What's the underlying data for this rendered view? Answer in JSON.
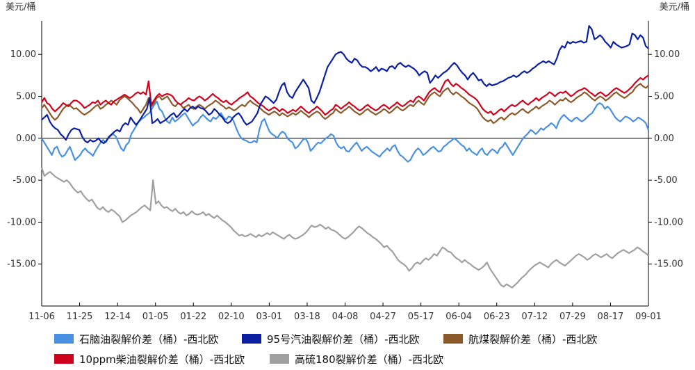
{
  "chart_data": {
    "type": "line",
    "y_unit_left": "美元/桶",
    "y_unit_right": "美元/桶",
    "ylim": [
      -20,
      14
    ],
    "yticks": [
      -15,
      -10,
      -5,
      0,
      5,
      10
    ],
    "ytick_labels": [
      "-15.00",
      "-10.00",
      "-5.00",
      "0.00",
      "5.00",
      "10.00"
    ],
    "x_tick_labels": [
      "11-06",
      "11-25",
      "12-14",
      "01-05",
      "01-22",
      "02-10",
      "03-01",
      "03-18",
      "04-08",
      "04-27",
      "05-17",
      "06-04",
      "06-23",
      "07-12",
      "07-29",
      "08-17",
      "09-01"
    ],
    "colors": {
      "naphtha": "#4a90e2",
      "gasoline95": "#0b1fa0",
      "jet": "#8b5a2b",
      "diesel": "#d0021b",
      "hsfo180": "#a0a0a0"
    },
    "series": [
      {
        "key": "naphtha",
        "name": "石脑油裂解价差（桶）-西北欧",
        "values": [
          0.0,
          -0.5,
          -1.0,
          -1.5,
          -2.0,
          -1.2,
          -1.0,
          -1.8,
          -2.2,
          -2.0,
          -1.5,
          -1.0,
          -1.8,
          -2.6,
          -2.3,
          -2.0,
          -1.5,
          -1.2,
          -1.6,
          -1.8,
          -2.1,
          -1.5,
          -1.0,
          -0.5,
          -0.2,
          -0.5,
          0.0,
          0.3,
          0.5,
          0.2,
          -0.5,
          -1.2,
          -1.5,
          -0.8,
          -0.5,
          0.5,
          1.0,
          1.5,
          2.0,
          2.3,
          2.5,
          2.8,
          3.0,
          3.5,
          4.0,
          4.4,
          3.5,
          3.2,
          2.5,
          2.0,
          1.8,
          2.5,
          2.0,
          2.2,
          2.5,
          2.8,
          3.0,
          2.5,
          2.0,
          1.5,
          1.8,
          2.0,
          2.5,
          2.8,
          2.5,
          2.2,
          2.0,
          2.5,
          2.3,
          2.6,
          3.0,
          2.5,
          2.2,
          2.6,
          2.5,
          2.0,
          1.2,
          0.5,
          0.0,
          -0.2,
          -0.3,
          -0.5,
          -0.5,
          -0.3,
          -0.5,
          1.0,
          2.0,
          2.3,
          1.5,
          0.8,
          0.5,
          0.3,
          0.0,
          0.5,
          0.8,
          0.6,
          0.0,
          -0.3,
          -0.5,
          -1.2,
          -1.0,
          -0.6,
          -0.2,
          0.0,
          -0.5,
          -1.5,
          -1.2,
          -0.8,
          -0.5,
          -0.6,
          -0.3,
          0.0,
          0.2,
          0.5,
          0.3,
          -0.5,
          -1.0,
          -1.2,
          -1.0,
          -1.5,
          -1.6,
          -1.2,
          -0.8,
          -0.5,
          -1.0,
          -1.5,
          -1.2,
          -1.0,
          -1.3,
          -1.6,
          -1.8,
          -2.0,
          -2.2,
          -1.8,
          -1.5,
          -1.2,
          -1.5,
          -1.0,
          -0.8,
          -1.5,
          -2.0,
          -2.2,
          -2.5,
          -2.8,
          -2.6,
          -2.0,
          -1.5,
          -1.2,
          -1.5,
          -2.0,
          -1.8,
          -1.5,
          -1.2,
          -1.0,
          -1.3,
          -1.6,
          -1.5,
          -1.0,
          -0.8,
          -0.5,
          -0.3,
          0.0,
          -0.2,
          -0.5,
          -0.8,
          -1.0,
          -1.5,
          -1.2,
          -1.6,
          -1.8,
          -2.0,
          -1.5,
          -1.2,
          -1.8,
          -2.0,
          -1.6,
          -1.3,
          -1.5,
          -1.8,
          -1.2,
          -1.0,
          -0.5,
          -1.0,
          -1.5,
          -2.0,
          -1.5,
          -1.0,
          -0.5,
          0.0,
          0.3,
          0.6,
          1.0,
          0.8,
          0.5,
          0.8,
          1.2,
          1.0,
          1.3,
          1.5,
          1.8,
          1.6,
          1.2,
          2.0,
          2.5,
          2.8,
          2.5,
          2.2,
          2.0,
          2.3,
          2.5,
          2.2,
          2.0,
          2.2,
          2.5,
          2.8,
          3.0,
          3.5,
          4.0,
          4.2,
          4.0,
          3.5,
          3.8,
          3.5,
          3.0,
          2.5,
          2.2,
          2.0,
          2.3,
          2.6,
          2.5,
          2.3,
          2.0,
          2.2,
          2.5,
          2.3,
          2.1,
          1.8,
          1.0
        ]
      },
      {
        "key": "gasoline95",
        "name": "95号汽油裂解价差（桶）-西北欧",
        "values": [
          2.2,
          2.5,
          2.8,
          2.0,
          1.5,
          1.2,
          1.0,
          0.5,
          0.2,
          -0.2,
          0.5,
          1.0,
          1.2,
          1.1,
          1.0,
          0.2,
          -0.3,
          -0.5,
          -0.2,
          -0.4,
          -0.3,
          0.0,
          -0.4,
          -0.6,
          -0.3,
          0.2,
          0.5,
          0.8,
          1.0,
          0.8,
          1.5,
          1.8,
          1.6,
          2.5,
          2.0,
          1.6,
          2.0,
          2.5,
          3.0,
          3.5,
          4.8,
          1.8,
          2.0,
          2.3,
          1.8,
          2.0,
          2.2,
          2.5,
          2.8,
          3.0,
          2.5,
          2.8,
          3.2,
          3.5,
          3.2,
          3.6,
          3.8,
          3.5,
          3.8,
          3.6,
          3.5,
          3.2,
          2.8,
          3.0,
          3.5,
          3.2,
          2.8,
          2.5,
          2.0,
          1.8,
          2.0,
          2.5,
          2.8,
          3.0,
          2.6,
          2.0,
          1.6,
          1.8,
          2.0,
          2.5,
          3.0,
          4.0,
          4.5,
          5.0,
          4.8,
          4.5,
          4.2,
          4.6,
          5.5,
          6.3,
          6.6,
          5.5,
          5.0,
          4.8,
          5.5,
          6.0,
          6.5,
          7.0,
          6.5,
          6.0,
          4.5,
          4.2,
          4.8,
          5.5,
          6.5,
          7.5,
          8.5,
          9.0,
          9.5,
          10.0,
          10.2,
          10.3,
          10.0,
          9.5,
          9.2,
          9.0,
          9.5,
          9.3,
          8.8,
          8.5,
          8.5,
          8.3,
          8.0,
          8.2,
          8.5,
          8.0,
          8.3,
          8.2,
          8.0,
          8.5,
          8.6,
          8.3,
          8.8,
          9.0,
          8.7,
          8.5,
          8.7,
          8.5,
          8.3,
          8.0,
          7.5,
          7.8,
          8.0,
          7.8,
          6.6,
          7.0,
          7.5,
          7.2,
          7.5,
          7.8,
          8.0,
          8.3,
          8.7,
          9.0,
          8.7,
          8.2,
          7.8,
          7.5,
          7.0,
          7.5,
          7.8,
          7.4,
          6.9,
          7.0,
          6.5,
          6.2,
          6.5,
          6.3,
          6.4,
          6.5,
          6.7,
          6.8,
          7.0,
          7.2,
          7.3,
          7.5,
          7.3,
          7.5,
          7.8,
          8.0,
          7.8,
          8.0,
          8.3,
          8.5,
          8.8,
          9.0,
          9.2,
          9.0,
          9.2,
          9.0,
          8.8,
          9.5,
          10.5,
          11.0,
          10.8,
          11.5,
          11.3,
          11.5,
          11.4,
          11.5,
          11.6,
          11.4,
          11.5,
          13.4,
          13.0,
          11.8,
          12.0,
          12.3,
          12.0,
          11.5,
          11.2,
          10.8,
          11.5,
          11.2,
          11.0,
          10.8,
          10.9,
          11.0,
          11.2,
          12.5,
          12.3,
          11.8,
          12.3,
          12.0,
          11.0,
          10.7
        ]
      },
      {
        "key": "jet",
        "name": "航煤裂解价差（桶）-西北欧",
        "values": [
          3.6,
          4.0,
          3.5,
          3.0,
          2.5,
          2.2,
          2.5,
          3.0,
          3.5,
          3.8,
          4.0,
          3.8,
          3.5,
          3.6,
          3.3,
          3.0,
          2.8,
          3.0,
          3.2,
          3.5,
          3.8,
          4.0,
          3.5,
          3.7,
          4.0,
          4.2,
          4.5,
          4.3,
          4.0,
          4.5,
          4.8,
          5.0,
          4.8,
          4.5,
          4.2,
          3.8,
          3.5,
          3.0,
          3.5,
          4.0,
          4.8,
          3.8,
          4.2,
          4.8,
          5.0,
          4.6,
          4.8,
          5.0,
          4.5,
          4.0,
          3.8,
          4.2,
          4.0,
          3.6,
          3.8,
          4.0,
          3.6,
          3.5,
          3.8,
          4.0,
          3.8,
          3.5,
          3.8,
          4.0,
          4.2,
          4.5,
          4.3,
          4.0,
          3.8,
          3.5,
          3.7,
          3.5,
          3.3,
          3.5,
          3.8,
          4.0,
          3.8,
          4.2,
          4.5,
          4.2,
          4.0,
          3.8,
          3.5,
          3.2,
          3.0,
          2.8,
          3.0,
          3.2,
          3.0,
          2.7,
          3.0,
          2.8,
          2.6,
          2.8,
          3.0,
          2.8,
          3.0,
          3.3,
          3.0,
          2.8,
          2.5,
          2.8,
          3.0,
          3.2,
          3.0,
          2.6,
          2.3,
          2.5,
          2.8,
          3.0,
          3.5,
          3.2,
          3.0,
          3.3,
          3.5,
          3.8,
          3.5,
          3.2,
          3.0,
          2.8,
          3.0,
          3.3,
          3.5,
          3.2,
          3.0,
          2.8,
          3.0,
          3.2,
          3.5,
          3.3,
          3.0,
          3.2,
          3.5,
          3.8,
          3.5,
          3.3,
          3.5,
          3.8,
          4.0,
          3.8,
          4.2,
          4.5,
          4.2,
          4.0,
          4.5,
          5.0,
          5.3,
          5.5,
          5.2,
          5.0,
          5.5,
          5.8,
          6.0,
          5.5,
          5.2,
          5.5,
          5.3,
          5.0,
          4.8,
          4.5,
          4.2,
          4.0,
          3.8,
          3.5,
          3.0,
          2.5,
          2.2,
          2.0,
          2.2,
          1.8,
          2.0,
          2.3,
          2.5,
          2.2,
          2.5,
          2.8,
          3.0,
          2.8,
          3.0,
          3.3,
          3.5,
          3.2,
          3.0,
          3.3,
          3.5,
          3.8,
          3.5,
          3.8,
          4.0,
          4.2,
          4.5,
          4.3,
          4.0,
          4.3,
          4.6,
          4.5,
          4.8,
          4.5,
          4.3,
          4.5,
          4.8,
          5.0,
          5.2,
          5.5,
          5.3,
          5.0,
          4.7,
          4.5,
          4.8,
          5.0,
          4.8,
          4.5,
          4.7,
          5.0,
          5.3,
          5.5,
          5.2,
          5.0,
          4.8,
          5.0,
          5.3,
          5.5,
          6.0,
          6.3,
          6.5,
          6.2,
          6.0,
          6.3
        ]
      },
      {
        "key": "diesel",
        "name": "10ppm柴油裂解价差（桶）-西北欧",
        "values": [
          4.3,
          4.8,
          4.2,
          4.0,
          3.5,
          3.2,
          3.5,
          3.8,
          4.2,
          4.0,
          3.8,
          4.2,
          4.5,
          4.5,
          4.3,
          4.0,
          3.6,
          3.8,
          4.0,
          4.3,
          4.2,
          4.5,
          4.0,
          4.3,
          4.5,
          4.2,
          4.0,
          4.4,
          4.6,
          4.8,
          5.0,
          5.2,
          5.0,
          4.8,
          5.0,
          5.3,
          5.5,
          5.3,
          5.5,
          5.2,
          6.8,
          4.0,
          4.5,
          5.0,
          5.3,
          5.0,
          5.2,
          5.3,
          5.2,
          5.0,
          4.5,
          4.2,
          4.0,
          4.3,
          4.5,
          4.8,
          4.6,
          4.5,
          4.8,
          5.0,
          4.8,
          4.5,
          4.7,
          5.0,
          5.3,
          5.0,
          4.8,
          4.5,
          4.3,
          4.5,
          4.2,
          4.0,
          4.3,
          4.5,
          4.8,
          5.0,
          5.2,
          5.5,
          5.0,
          4.8,
          4.5,
          4.2,
          4.0,
          3.8,
          3.5,
          3.3,
          3.5,
          3.7,
          3.5,
          3.2,
          3.5,
          3.3,
          3.0,
          3.2,
          3.4,
          3.2,
          3.5,
          3.8,
          3.5,
          3.2,
          3.0,
          3.3,
          3.5,
          3.8,
          3.5,
          3.2,
          2.8,
          3.0,
          3.3,
          3.5,
          4.0,
          3.8,
          3.5,
          3.8,
          4.0,
          4.3,
          4.0,
          3.8,
          3.5,
          3.3,
          3.5,
          3.8,
          4.0,
          3.7,
          3.5,
          3.3,
          3.5,
          3.8,
          4.0,
          3.8,
          3.5,
          3.8,
          4.0,
          4.3,
          4.0,
          3.8,
          4.0,
          4.3,
          4.5,
          4.3,
          4.8,
          5.0,
          4.8,
          4.5,
          5.0,
          5.5,
          5.8,
          6.0,
          5.7,
          5.5,
          6.2,
          6.8,
          7.0,
          6.5,
          6.2,
          6.5,
          6.3,
          6.0,
          5.8,
          5.5,
          5.2,
          5.0,
          4.8,
          4.5,
          4.0,
          3.5,
          3.2,
          3.0,
          3.2,
          2.8,
          3.0,
          3.3,
          3.5,
          3.2,
          3.5,
          3.8,
          4.0,
          3.8,
          4.0,
          4.3,
          4.5,
          4.2,
          4.0,
          4.3,
          4.5,
          4.8,
          4.5,
          4.8,
          5.0,
          5.2,
          5.5,
          5.3,
          5.0,
          5.3,
          5.5,
          5.4,
          5.6,
          5.3,
          5.0,
          5.2,
          5.5,
          5.7,
          5.8,
          6.0,
          5.8,
          5.5,
          5.3,
          5.0,
          5.3,
          5.5,
          5.3,
          5.0,
          5.2,
          5.5,
          5.8,
          6.0,
          5.8,
          5.6,
          5.4,
          5.6,
          5.9,
          6.2,
          6.6,
          6.9,
          7.2,
          7.0,
          7.3,
          7.5
        ]
      },
      {
        "key": "hsfo180",
        "name": "高硫180裂解价差（桶）-西北欧",
        "values": [
          -3.5,
          -4.5,
          -4.2,
          -4.0,
          -4.3,
          -4.6,
          -4.8,
          -5.0,
          -5.2,
          -5.0,
          -5.3,
          -5.8,
          -6.2,
          -6.5,
          -6.3,
          -6.8,
          -7.2,
          -7.5,
          -7.3,
          -7.8,
          -8.3,
          -8.5,
          -8.2,
          -8.6,
          -8.8,
          -8.5,
          -8.7,
          -9.0,
          -9.3,
          -10.0,
          -9.8,
          -9.5,
          -9.2,
          -9.0,
          -8.8,
          -8.5,
          -8.2,
          -8.0,
          -8.3,
          -8.6,
          -5.0,
          -7.8,
          -7.5,
          -8.0,
          -8.3,
          -8.2,
          -8.5,
          -8.7,
          -8.4,
          -8.8,
          -9.0,
          -8.8,
          -9.2,
          -9.0,
          -8.7,
          -9.0,
          -9.1,
          -9.0,
          -8.8,
          -9.2,
          -9.0,
          -9.3,
          -9.5,
          -9.2,
          -9.5,
          -9.8,
          -10.0,
          -10.3,
          -10.6,
          -11.0,
          -11.3,
          -11.6,
          -11.5,
          -11.7,
          -11.6,
          -11.4,
          -11.6,
          -11.8,
          -11.5,
          -11.7,
          -11.5,
          -11.3,
          -11.5,
          -11.2,
          -11.4,
          -11.6,
          -11.8,
          -12.0,
          -11.7,
          -11.5,
          -11.8,
          -12.0,
          -11.9,
          -11.7,
          -11.5,
          -11.2,
          -10.8,
          -10.4,
          -10.6,
          -10.5,
          -10.3,
          -10.5,
          -10.8,
          -10.6,
          -10.9,
          -11.0,
          -11.2,
          -11.5,
          -11.8,
          -12.0,
          -11.8,
          -11.5,
          -11.2,
          -10.8,
          -10.5,
          -10.7,
          -11.0,
          -11.3,
          -11.5,
          -11.8,
          -12.0,
          -12.3,
          -12.6,
          -13.0,
          -12.8,
          -13.2,
          -13.5,
          -14.0,
          -14.5,
          -14.8,
          -15.0,
          -15.3,
          -15.8,
          -15.5,
          -15.0,
          -14.8,
          -15.0,
          -14.6,
          -14.3,
          -14.5,
          -14.2,
          -13.8,
          -14.0,
          -13.5,
          -13.0,
          -13.2,
          -13.5,
          -13.6,
          -14.0,
          -14.3,
          -14.5,
          -14.8,
          -14.5,
          -14.8,
          -15.0,
          -15.3,
          -15.5,
          -15.7,
          -15.5,
          -15.2,
          -14.8,
          -15.5,
          -16.0,
          -16.5,
          -17.0,
          -17.5,
          -17.7,
          -17.4,
          -17.6,
          -17.8,
          -17.5,
          -17.2,
          -16.8,
          -16.5,
          -16.2,
          -15.8,
          -15.5,
          -15.2,
          -15.0,
          -14.8,
          -15.0,
          -15.2,
          -15.4,
          -15.0,
          -14.7,
          -14.5,
          -14.8,
          -15.0,
          -15.2,
          -14.9,
          -14.6,
          -14.3,
          -14.0,
          -13.8,
          -14.0,
          -14.2,
          -14.5,
          -14.3,
          -14.0,
          -13.8,
          -14.0,
          -14.2,
          -14.0,
          -13.8,
          -14.1,
          -14.3,
          -14.0,
          -13.7,
          -13.5,
          -13.3,
          -13.5,
          -13.7,
          -13.5,
          -13.3,
          -13.0,
          -13.2,
          -13.5,
          -13.7,
          -14.0
        ]
      }
    ],
    "grid": false,
    "legend_position": "bottom"
  }
}
